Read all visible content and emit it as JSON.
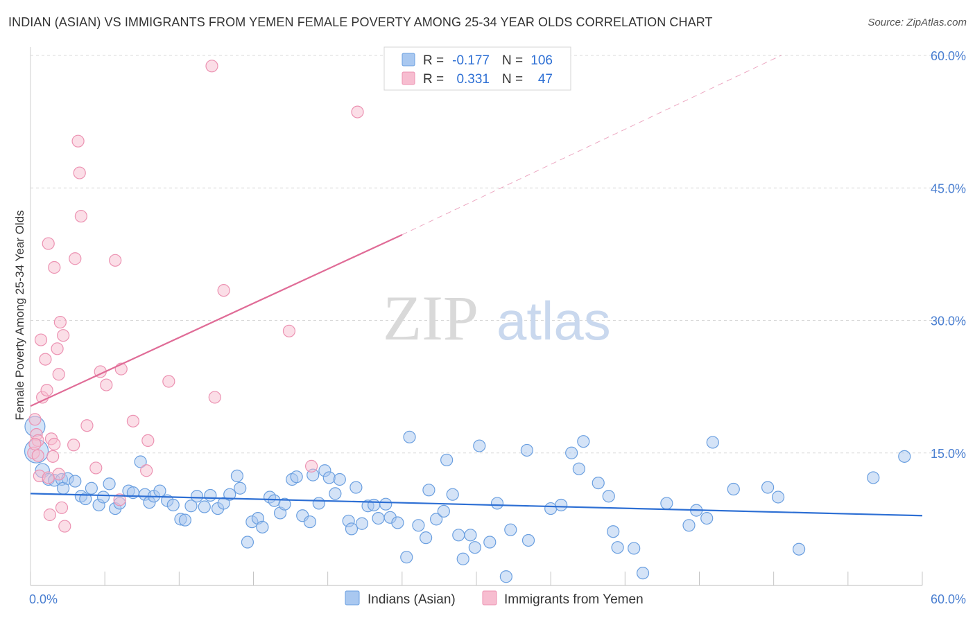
{
  "title": "INDIAN (ASIAN) VS IMMIGRANTS FROM YEMEN FEMALE POVERTY AMONG 25-34 YEAR OLDS CORRELATION CHART",
  "source": "Source: ZipAtlas.com",
  "watermark": {
    "zip": "ZIP",
    "atlas": "atlas"
  },
  "colors": {
    "blue_fill": "#a9c8f0",
    "blue_stroke": "#6a9fe0",
    "blue_line": "#2d6fd4",
    "pink_fill": "#f7bdd0",
    "pink_stroke": "#ec92b2",
    "pink_line": "#e06c97",
    "grid": "#d8d8d8",
    "tick_text": "#4a7fd1"
  },
  "stats": [
    {
      "r_label": "R =",
      "r_value": "-0.177",
      "n_label": "N =",
      "n_value": "106"
    },
    {
      "r_label": "R =",
      "r_value": "0.331",
      "n_label": "N =",
      "n_value": "47"
    }
  ],
  "chart_data": {
    "type": "scatter",
    "title": "INDIAN (ASIAN) VS IMMIGRANTS FROM YEMEN FEMALE POVERTY AMONG 25-34 YEAR OLDS CORRELATION CHART",
    "xlabel": "",
    "ylabel": "Female Poverty Among 25-34 Year Olds",
    "xlim": [
      0,
      60
    ],
    "ylim": [
      0,
      60
    ],
    "x_ticks": [
      {
        "v": 0,
        "label": "0.0%"
      },
      {
        "v": 60,
        "label": "60.0%"
      }
    ],
    "y_ticks": [
      {
        "v": 15,
        "label": "15.0%"
      },
      {
        "v": 30,
        "label": "30.0%"
      },
      {
        "v": 45,
        "label": "45.0%"
      },
      {
        "v": 60,
        "label": "60.0%"
      }
    ],
    "grid": true,
    "legend_position": "bottom-center",
    "series": [
      {
        "name": "Indians (Asian)",
        "color": "#a9c8f0",
        "trend": {
          "x0": 0,
          "y0": 10.4,
          "x1": 60,
          "y1": 7.9,
          "dashed_to": null
        },
        "points": [
          [
            0.3,
            18.0,
            1.7
          ],
          [
            0.4,
            15.2,
            2.0
          ],
          [
            0.8,
            13.0,
            1.2
          ],
          [
            1.2,
            12.0,
            1.0
          ],
          [
            1.6,
            11.9,
            1.0
          ],
          [
            2.1,
            12.0,
            1.0
          ],
          [
            2.2,
            11.0,
            1.0
          ],
          [
            2.5,
            12.1,
            1.0
          ],
          [
            3.0,
            11.8,
            1.0
          ],
          [
            3.4,
            10.1,
            1.0
          ],
          [
            3.7,
            9.8,
            1.0
          ],
          [
            4.1,
            11.0,
            1.0
          ],
          [
            4.6,
            9.1,
            1.0
          ],
          [
            4.9,
            10.0,
            1.0
          ],
          [
            5.3,
            11.5,
            1.0
          ],
          [
            5.7,
            8.7,
            1.0
          ],
          [
            6.0,
            9.3,
            1.0
          ],
          [
            6.6,
            10.7,
            1.0
          ],
          [
            6.9,
            10.5,
            1.0
          ],
          [
            7.4,
            14.0,
            1.0
          ],
          [
            7.7,
            10.3,
            1.0
          ],
          [
            8.0,
            9.4,
            1.0
          ],
          [
            8.3,
            10.1,
            1.0
          ],
          [
            8.7,
            10.7,
            1.0
          ],
          [
            9.2,
            9.6,
            1.0
          ],
          [
            9.6,
            9.1,
            1.0
          ],
          [
            10.1,
            7.5,
            1.0
          ],
          [
            10.4,
            7.4,
            1.0
          ],
          [
            10.8,
            9.0,
            1.0
          ],
          [
            11.2,
            10.1,
            1.0
          ],
          [
            11.7,
            8.9,
            1.0
          ],
          [
            12.1,
            10.2,
            1.0
          ],
          [
            12.6,
            8.7,
            1.0
          ],
          [
            13.0,
            9.3,
            1.0
          ],
          [
            13.4,
            10.3,
            1.0
          ],
          [
            13.9,
            12.4,
            1.0
          ],
          [
            14.1,
            11.0,
            1.0
          ],
          [
            14.6,
            4.9,
            1.0
          ],
          [
            14.9,
            7.2,
            1.0
          ],
          [
            15.3,
            7.6,
            1.0
          ],
          [
            15.6,
            6.6,
            1.0
          ],
          [
            16.1,
            10.0,
            1.0
          ],
          [
            16.4,
            9.6,
            1.0
          ],
          [
            16.8,
            8.2,
            1.0
          ],
          [
            17.1,
            9.2,
            1.0
          ],
          [
            17.6,
            12.0,
            1.0
          ],
          [
            17.9,
            12.3,
            1.0
          ],
          [
            18.3,
            7.9,
            1.0
          ],
          [
            18.8,
            7.2,
            1.0
          ],
          [
            19.0,
            12.5,
            1.0
          ],
          [
            19.4,
            9.3,
            1.0
          ],
          [
            19.8,
            13.0,
            1.0
          ],
          [
            20.1,
            12.2,
            1.0
          ],
          [
            20.5,
            10.4,
            1.0
          ],
          [
            20.8,
            12.0,
            1.0
          ],
          [
            21.4,
            7.3,
            1.0
          ],
          [
            21.6,
            6.4,
            1.0
          ],
          [
            21.9,
            11.1,
            1.0
          ],
          [
            22.3,
            7.0,
            1.0
          ],
          [
            22.7,
            9.0,
            1.0
          ],
          [
            23.1,
            9.1,
            1.0
          ],
          [
            23.4,
            7.6,
            1.0
          ],
          [
            23.9,
            9.2,
            1.0
          ],
          [
            24.2,
            7.7,
            1.0
          ],
          [
            24.7,
            7.1,
            1.0
          ],
          [
            25.3,
            3.2,
            1.0
          ],
          [
            25.5,
            16.8,
            1.0
          ],
          [
            26.1,
            6.8,
            1.0
          ],
          [
            26.6,
            5.4,
            1.0
          ],
          [
            26.8,
            10.8,
            1.0
          ],
          [
            27.3,
            7.5,
            1.0
          ],
          [
            27.8,
            8.4,
            1.0
          ],
          [
            28.0,
            14.2,
            1.0
          ],
          [
            28.4,
            10.3,
            1.0
          ],
          [
            28.8,
            5.7,
            1.0
          ],
          [
            29.1,
            3.0,
            1.0
          ],
          [
            29.6,
            5.7,
            1.0
          ],
          [
            29.9,
            4.3,
            1.0
          ],
          [
            30.2,
            15.8,
            1.0
          ],
          [
            30.9,
            4.9,
            1.0
          ],
          [
            31.4,
            9.3,
            1.0
          ],
          [
            32.0,
            1.0,
            1.0
          ],
          [
            32.3,
            6.3,
            1.0
          ],
          [
            33.5,
            5.1,
            1.0
          ],
          [
            33.4,
            15.3,
            1.0
          ],
          [
            35.0,
            8.7,
            1.0
          ],
          [
            35.7,
            9.1,
            1.0
          ],
          [
            36.4,
            15.0,
            1.0
          ],
          [
            36.9,
            13.2,
            1.0
          ],
          [
            37.2,
            16.3,
            1.0
          ],
          [
            38.2,
            11.6,
            1.0
          ],
          [
            38.9,
            10.1,
            1.0
          ],
          [
            39.2,
            6.1,
            1.0
          ],
          [
            39.5,
            4.3,
            1.0
          ],
          [
            40.6,
            4.2,
            1.0
          ],
          [
            41.2,
            1.4,
            1.0
          ],
          [
            42.8,
            9.3,
            1.0
          ],
          [
            44.3,
            6.8,
            1.0
          ],
          [
            44.8,
            8.5,
            1.0
          ],
          [
            45.5,
            7.6,
            1.0
          ],
          [
            45.9,
            16.2,
            1.0
          ],
          [
            47.3,
            10.9,
            1.0
          ],
          [
            49.6,
            11.1,
            1.0
          ],
          [
            50.3,
            10.0,
            1.0
          ],
          [
            51.7,
            4.1,
            1.0
          ],
          [
            56.7,
            12.2,
            1.0
          ],
          [
            58.8,
            14.6,
            1.0
          ]
        ]
      },
      {
        "name": "Immigrants from Yemen",
        "color": "#f7bdd0",
        "trend": {
          "x0": 0,
          "y0": 20.3,
          "x1": 25.0,
          "y1": 39.7,
          "dashed_to": [
            50.5,
            60.0
          ]
        },
        "points": [
          [
            0.2,
            15.0,
            1.0
          ],
          [
            0.3,
            18.8,
            1.0
          ],
          [
            0.4,
            17.1,
            1.0
          ],
          [
            0.5,
            16.4,
            1.0
          ],
          [
            0.6,
            12.4,
            1.0
          ],
          [
            0.7,
            27.8,
            1.0
          ],
          [
            0.8,
            21.3,
            1.0
          ],
          [
            1.0,
            25.6,
            1.0
          ],
          [
            1.1,
            22.1,
            1.0
          ],
          [
            1.2,
            38.7,
            1.0
          ],
          [
            1.3,
            8.0,
            1.0
          ],
          [
            1.4,
            16.6,
            1.0
          ],
          [
            1.5,
            14.6,
            1.0
          ],
          [
            1.6,
            36.0,
            1.0
          ],
          [
            1.9,
            12.6,
            1.0
          ],
          [
            1.8,
            26.8,
            1.0
          ],
          [
            1.9,
            23.9,
            1.0
          ],
          [
            2.0,
            29.8,
            1.0
          ],
          [
            2.1,
            8.8,
            1.0
          ],
          [
            2.2,
            28.3,
            1.0
          ],
          [
            2.3,
            6.7,
            1.0
          ],
          [
            2.9,
            15.9,
            1.0
          ],
          [
            3.0,
            37.0,
            1.0
          ],
          [
            3.2,
            50.3,
            1.0
          ],
          [
            3.3,
            46.7,
            1.0
          ],
          [
            3.4,
            41.8,
            1.0
          ],
          [
            3.8,
            18.1,
            1.0
          ],
          [
            4.4,
            13.3,
            1.0
          ],
          [
            4.7,
            24.2,
            1.0
          ],
          [
            5.1,
            22.7,
            1.0
          ],
          [
            5.7,
            36.8,
            1.0
          ],
          [
            6.0,
            9.7,
            1.0
          ],
          [
            6.1,
            24.5,
            1.0
          ],
          [
            6.9,
            18.6,
            1.0
          ],
          [
            7.8,
            13.0,
            1.0
          ],
          [
            7.9,
            16.4,
            1.0
          ],
          [
            9.3,
            23.1,
            1.0
          ],
          [
            12.2,
            58.8,
            1.0
          ],
          [
            12.4,
            21.3,
            1.0
          ],
          [
            13.0,
            33.4,
            1.0
          ],
          [
            17.4,
            28.8,
            1.0
          ],
          [
            18.9,
            13.5,
            1.0
          ],
          [
            22.0,
            53.6,
            1.0
          ],
          [
            0.3,
            16.0,
            1.0
          ],
          [
            0.5,
            14.7,
            1.0
          ],
          [
            1.6,
            16.0,
            1.0
          ],
          [
            1.2,
            12.2,
            1.0
          ]
        ]
      }
    ]
  },
  "legend": {
    "items": [
      {
        "label": "Indians (Asian)"
      },
      {
        "label": "Immigrants from Yemen"
      }
    ]
  }
}
